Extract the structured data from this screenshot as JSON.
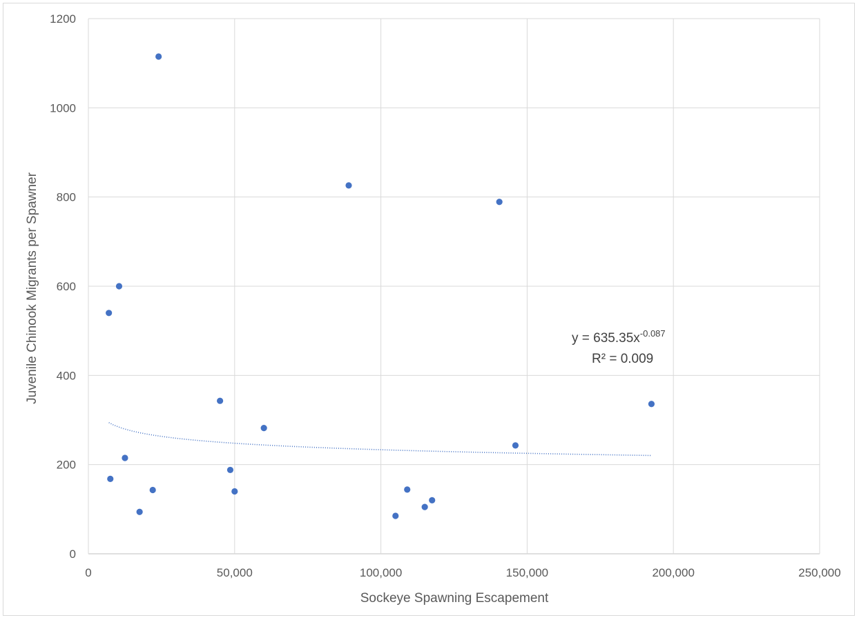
{
  "chart_data": {
    "type": "scatter",
    "title": "",
    "xlabel": "Sockeye Spawning Escapement",
    "ylabel": "Juvenile Chinook Migrants per Spawner",
    "xlim": [
      0,
      250000
    ],
    "ylim": [
      0,
      1200
    ],
    "x_ticks": [
      0,
      50000,
      100000,
      150000,
      200000,
      250000
    ],
    "x_tick_labels": [
      "0",
      "50,000",
      "100,000",
      "150,000",
      "200,000",
      "250,000"
    ],
    "y_ticks": [
      0,
      200,
      400,
      600,
      800,
      1000,
      1200
    ],
    "y_tick_labels": [
      "0",
      "200",
      "400",
      "600",
      "800",
      "1000",
      "1200"
    ],
    "grid": true,
    "legend": "none",
    "color": "#4472c4",
    "points": [
      {
        "x": 7000,
        "y": 540
      },
      {
        "x": 7500,
        "y": 168
      },
      {
        "x": 10500,
        "y": 600
      },
      {
        "x": 12500,
        "y": 215
      },
      {
        "x": 17500,
        "y": 94
      },
      {
        "x": 22000,
        "y": 143
      },
      {
        "x": 24000,
        "y": 1115
      },
      {
        "x": 45000,
        "y": 343
      },
      {
        "x": 48500,
        "y": 188
      },
      {
        "x": 50000,
        "y": 140
      },
      {
        "x": 60000,
        "y": 282
      },
      {
        "x": 89000,
        "y": 826
      },
      {
        "x": 105000,
        "y": 85
      },
      {
        "x": 109000,
        "y": 144
      },
      {
        "x": 115000,
        "y": 105
      },
      {
        "x": 117500,
        "y": 120
      },
      {
        "x": 140500,
        "y": 789
      },
      {
        "x": 146000,
        "y": 243
      },
      {
        "x": 192500,
        "y": 336
      }
    ],
    "trendline": {
      "type": "power",
      "a": 635.35,
      "b": -0.087,
      "x_range": [
        7000,
        192500
      ],
      "equation_prefix": "y = 635.35x",
      "equation_exponent": "-0.087",
      "r2_label": "R² = 0.009"
    }
  }
}
